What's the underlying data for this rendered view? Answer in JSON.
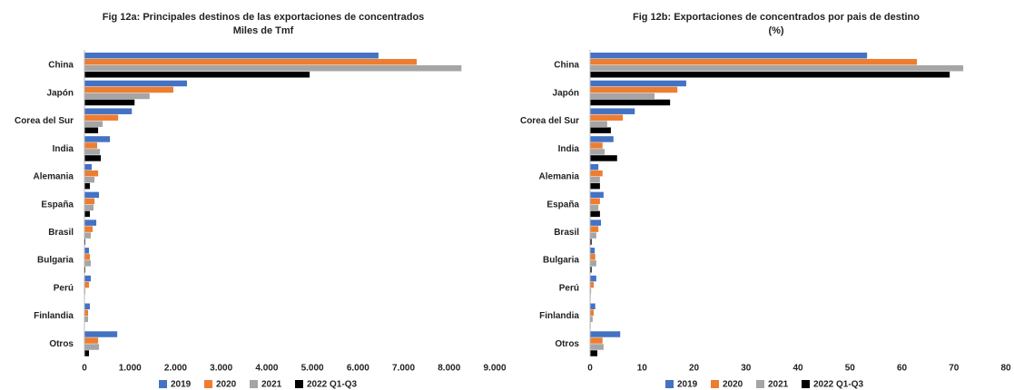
{
  "chart_data": [
    {
      "type": "barh",
      "title": "Fig 12a: Principales destinos de las exportaciones de concentrados",
      "subtitle": "Miles de Tmf",
      "categories": [
        "China",
        "Japón",
        "Corea del Sur",
        "India",
        "Alemania",
        "España",
        "Brasil",
        "Bulgaria",
        "Perú",
        "Finlandia",
        "Otros"
      ],
      "series": [
        {
          "name": "2019",
          "color": "#4472c4",
          "values": [
            6450,
            2250,
            1040,
            560,
            160,
            320,
            260,
            100,
            140,
            120,
            720
          ]
        },
        {
          "name": "2020",
          "color": "#ed7d31",
          "values": [
            7290,
            1950,
            740,
            280,
            300,
            220,
            180,
            120,
            100,
            80,
            300
          ]
        },
        {
          "name": "2021",
          "color": "#a5a5a5",
          "values": [
            8270,
            1430,
            400,
            340,
            220,
            200,
            140,
            140,
            20,
            80,
            320
          ]
        },
        {
          "name": "2022 Q1-Q3",
          "color": "#000000",
          "values": [
            4940,
            1100,
            300,
            360,
            120,
            120,
            20,
            20,
            10,
            5,
            100
          ]
        }
      ],
      "xlim": [
        0,
        9000
      ],
      "xticks": [
        0,
        {
          "value": 1000,
          "label": "1.000"
        },
        {
          "value": 2000,
          "label": "2.000"
        },
        {
          "value": 3000,
          "label": "3.000"
        },
        {
          "value": 4000,
          "label": "4.000"
        },
        {
          "value": 5000,
          "label": "5.000"
        },
        {
          "value": 6000,
          "label": "6.000"
        },
        {
          "value": 7000,
          "label": "7.000"
        },
        {
          "value": 8000,
          "label": "8.000"
        },
        {
          "value": 9000,
          "label": "9.000"
        }
      ],
      "legend": "bottom"
    },
    {
      "type": "barh",
      "title": "Fig 12b: Exportaciones de concentrados por pais de destino",
      "subtitle": "(%)",
      "categories": [
        "China",
        "Japón",
        "Corea del Sur",
        "India",
        "Alemania",
        "España",
        "Brasil",
        "Bulgaria",
        "Perú",
        "Finlandia",
        "Otros"
      ],
      "series": [
        {
          "name": "2019",
          "color": "#4472c4",
          "values": [
            53.3,
            18.5,
            8.6,
            4.5,
            1.6,
            2.6,
            2.1,
            0.9,
            1.2,
            1.0,
            5.8
          ]
        },
        {
          "name": "2020",
          "color": "#ed7d31",
          "values": [
            62.9,
            16.8,
            6.3,
            2.4,
            2.4,
            1.9,
            1.6,
            1.0,
            0.7,
            0.7,
            2.4
          ]
        },
        {
          "name": "2021",
          "color": "#a5a5a5",
          "values": [
            71.8,
            12.4,
            3.3,
            2.8,
            1.9,
            1.6,
            1.2,
            1.2,
            0.2,
            0.5,
            2.6
          ]
        },
        {
          "name": "2022 Q1-Q3",
          "color": "#000000",
          "values": [
            69.2,
            15.4,
            4.0,
            5.2,
            1.9,
            1.9,
            0.3,
            0.3,
            0.1,
            0.1,
            1.4
          ]
        }
      ],
      "xlim": [
        0,
        80
      ],
      "xticks": [
        0,
        10,
        20,
        30,
        40,
        50,
        60,
        70,
        80
      ],
      "legend": "bottom"
    }
  ]
}
